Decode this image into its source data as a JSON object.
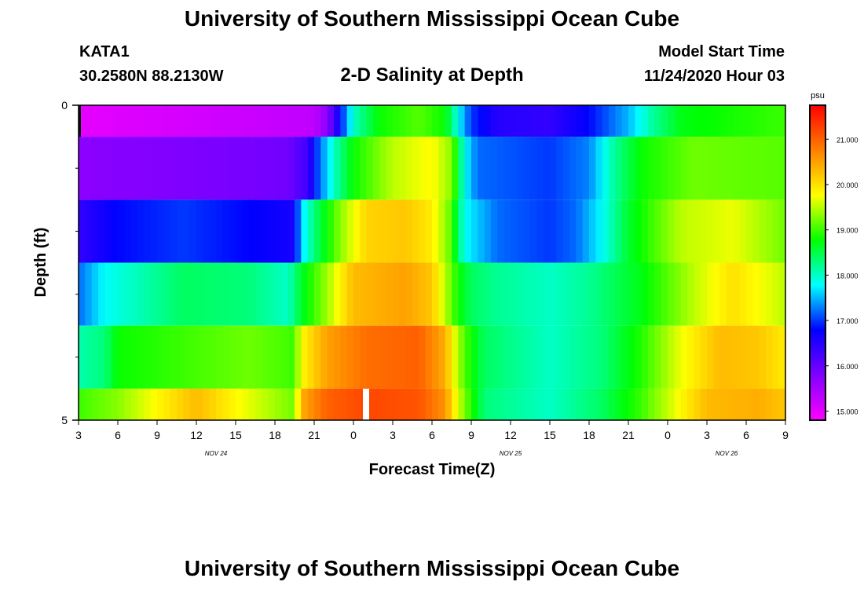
{
  "header": {
    "title": "University of Southern Mississippi Ocean Cube",
    "station_id": "KATA1",
    "station_coords": "30.2580N 88.2130W",
    "subtitle": "2-D Salinity at Depth",
    "model_label": "Model Start Time",
    "model_time": "11/24/2020 Hour 03"
  },
  "footer": {
    "title": "University of Southern Mississippi Ocean Cube"
  },
  "chart_data": {
    "type": "heatmap",
    "xlabel": "Forecast Time(Z)",
    "ylabel": "Depth (ft)",
    "x_hours": [
      0,
      3,
      6,
      9,
      12,
      15,
      18,
      21,
      24,
      27,
      30,
      33,
      36,
      39,
      42,
      45,
      48,
      51,
      54
    ],
    "x_tick_labels": [
      "3",
      "6",
      "9",
      "12",
      "15",
      "18",
      "21",
      "0",
      "3",
      "6",
      "9",
      "12",
      "15",
      "18",
      "21",
      "0",
      "3",
      "6",
      "9"
    ],
    "date_labels": [
      {
        "label": "NOV  24",
        "hour": 10.5
      },
      {
        "label": "NOV  25",
        "hour": 33
      },
      {
        "label": "NOV  26",
        "hour": 49.5
      }
    ],
    "y_tick_labels": [
      "0",
      "5"
    ],
    "ylim": [
      0,
      5
    ],
    "y_minor_ticks": [
      1,
      2,
      3,
      4
    ],
    "colorbar": {
      "unit": "psu",
      "min": 14.8,
      "max": 21.75,
      "tick_values": [
        15,
        16,
        17,
        18,
        19,
        20,
        21
      ],
      "tick_labels": [
        "15.000",
        "16.000",
        "17.000",
        "18.000",
        "19.000",
        "20.000",
        "21.000"
      ],
      "colors": [
        "#ff00ff",
        "#8000ff",
        "#0000ff",
        "#00ffff",
        "#00ff00",
        "#ffff00",
        "#ff8000",
        "#ff0000"
      ]
    },
    "rows": [
      {
        "depth_top": 0,
        "depth_bottom": 0.5,
        "keys": [
          [
            0,
            15.0
          ],
          [
            18,
            15.3
          ],
          [
            19,
            15.7
          ],
          [
            20,
            16.8
          ],
          [
            21,
            18.0
          ],
          [
            23,
            18.8
          ],
          [
            26,
            19.1
          ],
          [
            28,
            18.8
          ],
          [
            29,
            17.8
          ],
          [
            30,
            17.0
          ],
          [
            32,
            16.5
          ],
          [
            36,
            16.4
          ],
          [
            39,
            16.8
          ],
          [
            42,
            17.5
          ],
          [
            44,
            18.2
          ],
          [
            46,
            18.7
          ],
          [
            54,
            19.0
          ]
        ]
      },
      {
        "depth_top": 0.5,
        "depth_bottom": 1.5,
        "keys": [
          [
            0,
            15.7
          ],
          [
            16,
            15.9
          ],
          [
            17.5,
            16.3
          ],
          [
            18.3,
            17.1
          ],
          [
            19.5,
            18.0
          ],
          [
            21,
            18.8
          ],
          [
            24,
            19.5
          ],
          [
            27,
            19.8
          ],
          [
            28.5,
            19.3
          ],
          [
            29.5,
            17.8
          ],
          [
            30.5,
            17.2
          ],
          [
            36,
            17.0
          ],
          [
            39,
            17.3
          ],
          [
            41,
            18.2
          ],
          [
            43,
            18.8
          ],
          [
            47,
            19.2
          ],
          [
            54,
            19.1
          ]
        ]
      },
      {
        "depth_top": 1.5,
        "depth_bottom": 2.5,
        "keys": [
          [
            0,
            16.4
          ],
          [
            3,
            16.8
          ],
          [
            8,
            17.0
          ],
          [
            15,
            16.7
          ],
          [
            16.5,
            16.6
          ],
          [
            17,
            17.6
          ],
          [
            18,
            18.3
          ],
          [
            20,
            19.3
          ],
          [
            22,
            20.1
          ],
          [
            25,
            20.2
          ],
          [
            27,
            19.9
          ],
          [
            28.3,
            19.2
          ],
          [
            29.5,
            17.8
          ],
          [
            32,
            17.2
          ],
          [
            36,
            17.0
          ],
          [
            38,
            17.2
          ],
          [
            40,
            17.8
          ],
          [
            42,
            18.6
          ],
          [
            46,
            19.5
          ],
          [
            50,
            19.7
          ],
          [
            54,
            19.2
          ]
        ]
      },
      {
        "depth_top": 2.5,
        "depth_bottom": 3.5,
        "keys": [
          [
            0,
            17.2
          ],
          [
            2,
            17.8
          ],
          [
            4,
            18.0
          ],
          [
            8,
            18.4
          ],
          [
            13,
            18.3
          ],
          [
            16,
            18.0
          ],
          [
            17,
            18.6
          ],
          [
            19,
            19.4
          ],
          [
            21,
            20.3
          ],
          [
            25,
            20.5
          ],
          [
            27,
            20.2
          ],
          [
            28,
            19.5
          ],
          [
            29,
            18.8
          ],
          [
            30,
            18.4
          ],
          [
            32,
            18.2
          ],
          [
            36,
            18.0
          ],
          [
            39,
            18.2
          ],
          [
            43,
            18.7
          ],
          [
            47,
            19.5
          ],
          [
            50,
            20.0
          ],
          [
            54,
            19.5
          ]
        ]
      },
      {
        "depth_top": 3.5,
        "depth_bottom": 4.5,
        "keys": [
          [
            0,
            18.1
          ],
          [
            2,
            18.3
          ],
          [
            3,
            18.8
          ],
          [
            8,
            19.0
          ],
          [
            13,
            19.2
          ],
          [
            16.5,
            19.0
          ],
          [
            17,
            19.8
          ],
          [
            19,
            20.5
          ],
          [
            22,
            20.9
          ],
          [
            26,
            21.0
          ],
          [
            28,
            20.4
          ],
          [
            29,
            19.4
          ],
          [
            30,
            18.8
          ],
          [
            31,
            18.4
          ],
          [
            36,
            18.0
          ],
          [
            40,
            18.3
          ],
          [
            43,
            18.9
          ],
          [
            46,
            19.7
          ],
          [
            49,
            20.3
          ],
          [
            52,
            20.2
          ],
          [
            54,
            19.9
          ]
        ]
      },
      {
        "depth_top": 4.5,
        "depth_bottom": 5,
        "keys": [
          [
            0,
            19.0
          ],
          [
            3,
            19.3
          ],
          [
            6,
            19.8
          ],
          [
            9,
            20.3
          ],
          [
            12,
            19.8
          ],
          [
            15,
            19.4
          ],
          [
            16.5,
            19.2
          ],
          [
            17,
            20.4
          ],
          [
            19,
            21.0
          ],
          [
            22,
            21.2
          ],
          [
            26,
            21.1
          ],
          [
            28,
            20.6
          ],
          [
            29,
            19.6
          ],
          [
            30,
            18.9
          ],
          [
            31,
            18.3
          ],
          [
            36,
            18.0
          ],
          [
            40,
            18.4
          ],
          [
            43,
            19.0
          ],
          [
            46,
            19.8
          ],
          [
            48,
            20.3
          ],
          [
            52,
            20.4
          ],
          [
            54,
            20.2
          ]
        ]
      }
    ]
  }
}
